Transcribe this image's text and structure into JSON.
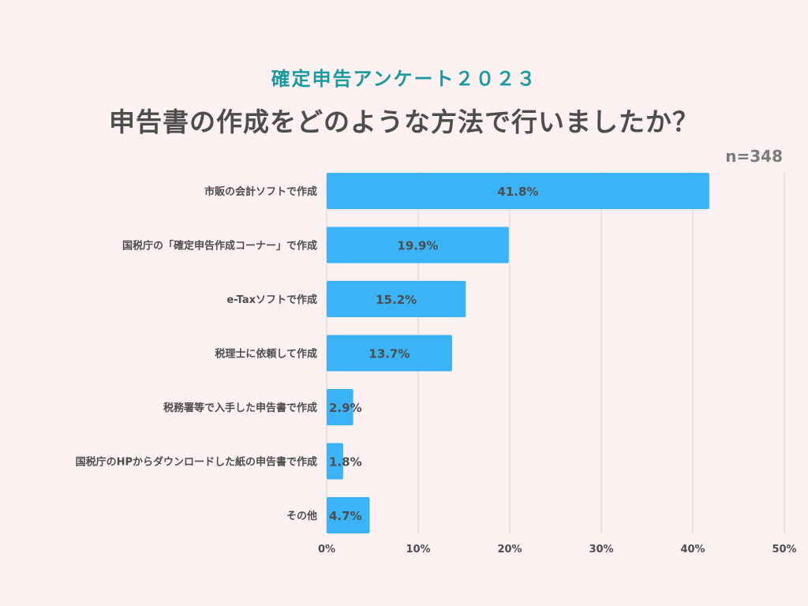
{
  "header": {
    "subtitle": "確定申告アンケート２０２３",
    "title": "申告書の作成をどのような方法で行いましたか？",
    "sample_size": "n=348"
  },
  "colors": {
    "bar": "#3bb4f7",
    "grid": "#d8d0cf",
    "subtitle": "#1a9aa0"
  },
  "chart_data": {
    "type": "bar",
    "orientation": "horizontal",
    "title": "申告書の作成をどのような方法で行いましたか？",
    "categories": [
      "市販の会計ソフトで作成",
      "国税庁の「確定申告作成コーナー」で作成",
      "e-Taxソフトで作成",
      "税理士に依頼して作成",
      "税務署等で入手した申告書で作成",
      "国税庁のHPからダウンロードした紙の申告書で作成",
      "その他"
    ],
    "values": [
      41.8,
      19.9,
      15.2,
      13.7,
      2.9,
      1.8,
      4.7
    ],
    "value_labels": [
      "41.8%",
      "19.9%",
      "15.2%",
      "13.7%",
      "2.9%",
      "1.8%",
      "4.7%"
    ],
    "xlim": [
      0,
      50
    ],
    "xticks": [
      0,
      10,
      20,
      30,
      40,
      50
    ],
    "xtick_labels": [
      "0%",
      "10%",
      "20%",
      "30%",
      "40%",
      "50%"
    ],
    "unit": "%",
    "grid": true
  }
}
